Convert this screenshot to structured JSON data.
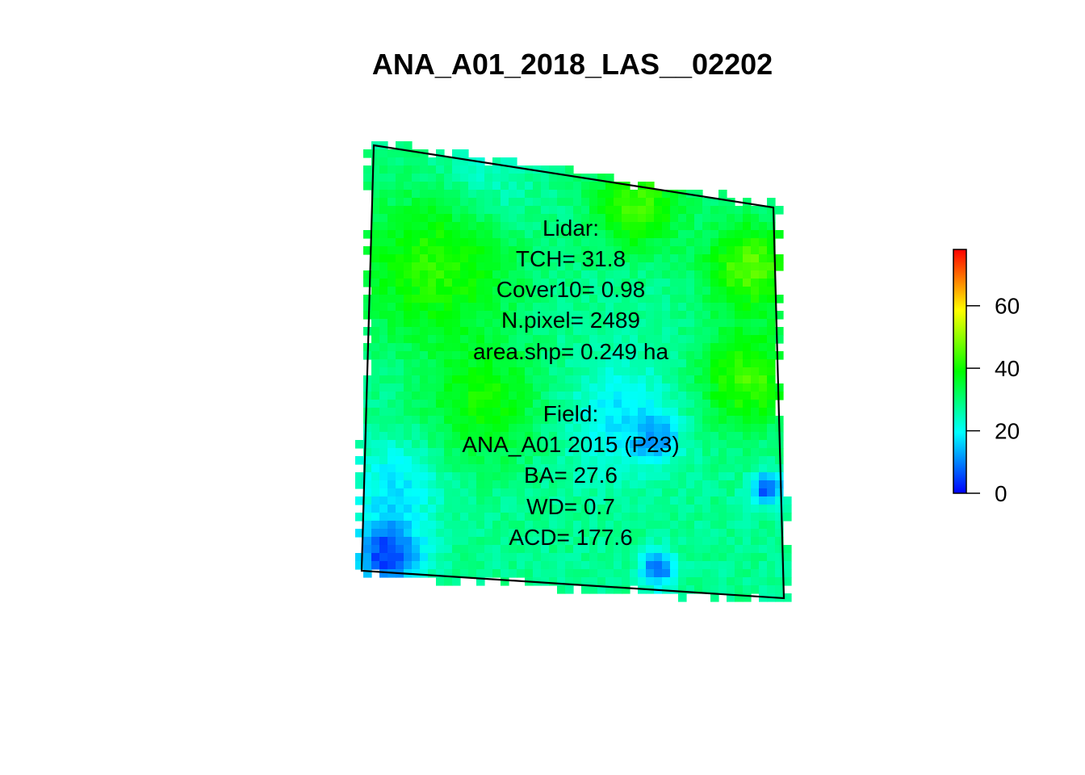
{
  "title": "ANA_A01_2018_LAS__02202",
  "map": {
    "raster_seed": 2202,
    "value_range": [
      0,
      78
    ],
    "background_level": 28,
    "patches": [
      {
        "level": 42,
        "at": "upper-left"
      },
      {
        "level": 44,
        "at": "top-right"
      },
      {
        "level": 46,
        "at": "right-edge"
      },
      {
        "level": 44,
        "at": "right-middle"
      },
      {
        "level": 40,
        "at": "center"
      },
      {
        "level": 22,
        "at": "top-middle"
      },
      {
        "level": 18,
        "at": "center-lower"
      },
      {
        "level": 10,
        "at": "center-right"
      },
      {
        "level": 4,
        "at": "bottom-left-corner"
      },
      {
        "level": 6,
        "at": "bottom-center"
      },
      {
        "level": 5,
        "at": "right-edge-lower"
      },
      {
        "level": 18,
        "at": "left-lower"
      }
    ]
  },
  "annotation": {
    "lidar_lines": [
      "Lidar:",
      "TCH= 31.8",
      "Cover10= 0.98",
      "N.pixel= 2489",
      "area.shp= 0.249 ha"
    ],
    "field_lines": [
      "Field:",
      "ANA_A01 2015 (P23)",
      "BA= 27.6",
      "WD= 0.7",
      "ACD= 177.6"
    ]
  },
  "legend": {
    "min": 0,
    "max": 78,
    "palette": [
      "#0000ff",
      "#00ffff",
      "#00ff00",
      "#ffff00",
      "#ff0000"
    ],
    "ticks": [
      {
        "value": 0,
        "label": "0"
      },
      {
        "value": 20,
        "label": "20"
      },
      {
        "value": 40,
        "label": "40"
      },
      {
        "value": 60,
        "label": "60"
      }
    ]
  }
}
